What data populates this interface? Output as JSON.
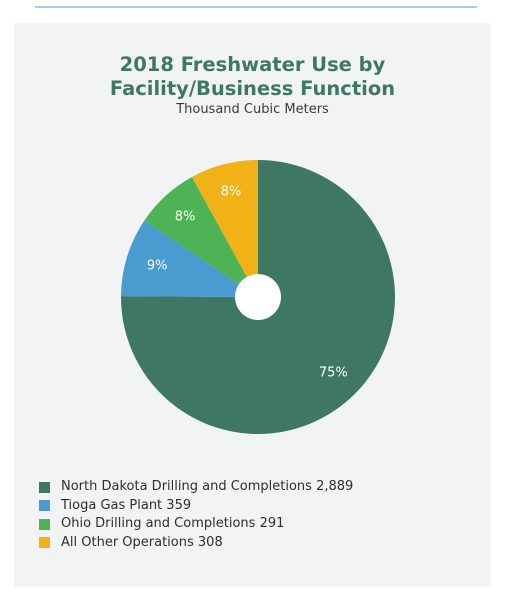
{
  "chart_data": {
    "type": "pie",
    "donut": true,
    "title_lines": [
      "2018 Freshwater Use by",
      "Facility/Business Function"
    ],
    "subtitle": "Thousand Cubic Meters",
    "slices": [
      {
        "name": "North Dakota Drilling and Completions",
        "value": 2889,
        "display_value": "2,889",
        "percent_label": "75%",
        "color": "#3f7862"
      },
      {
        "name": "Tioga Gas Plant",
        "value": 359,
        "display_value": "359",
        "percent_label": "9%",
        "color": "#4a9bcf"
      },
      {
        "name": "Ohio Drilling and Completions",
        "value": 291,
        "display_value": "291",
        "percent_label": "8%",
        "color": "#4db354"
      },
      {
        "name": "All Other Operations",
        "value": 308,
        "display_value": "308",
        "percent_label": "8%",
        "color": "#f0b216"
      }
    ],
    "legend_position": "bottom-left"
  }
}
